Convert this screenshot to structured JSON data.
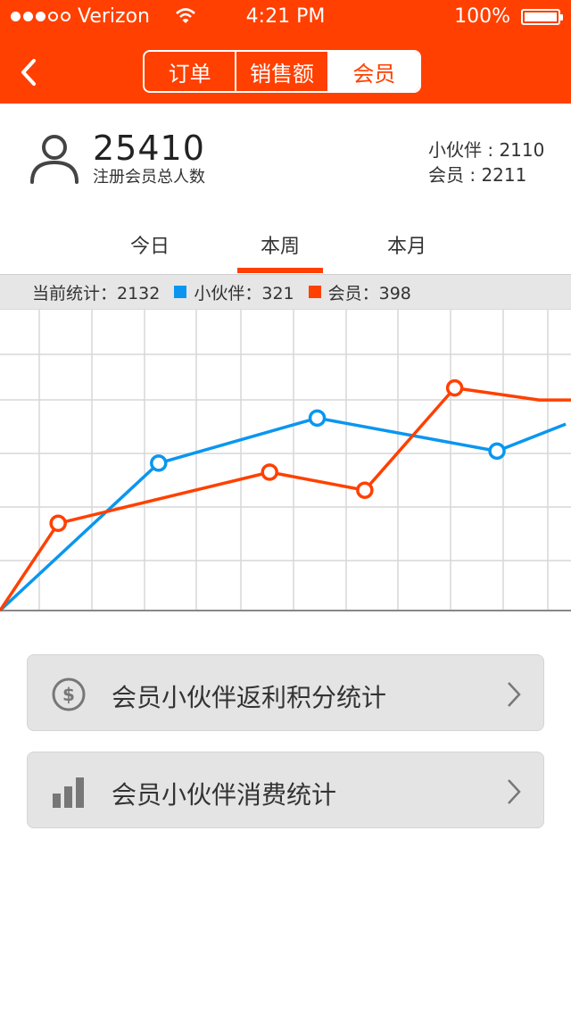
{
  "status": {
    "carrier": "Verizon",
    "time": "4:21 PM",
    "battery": "100%"
  },
  "nav": {
    "segments": [
      "订单",
      "销售额",
      "会员"
    ],
    "active": 2
  },
  "summary": {
    "total": "25410",
    "total_label": "注册会员总人数",
    "partners": "小伙伴 : 2110",
    "members": "会员 : 2211"
  },
  "periods": {
    "items": [
      "今日",
      "本周",
      "本月"
    ],
    "active": 1
  },
  "stats": {
    "current": "当前统计：2132",
    "partner": "小伙伴：321",
    "member": "会员：398",
    "partner_color": "#0a96f0",
    "member_color": "#ff4000"
  },
  "chart_data": {
    "type": "line",
    "title": "",
    "xlabel": "",
    "ylabel": "",
    "grid": true,
    "ylim": [
      0,
      100
    ],
    "series": [
      {
        "name": "小伙伴",
        "color": "#0a96f0",
        "points": [
          [
            0,
            0
          ],
          [
            30,
            49
          ],
          [
            60,
            64
          ],
          [
            94,
            53
          ],
          [
            107,
            62
          ]
        ],
        "markers": [
          1,
          2,
          3
        ]
      },
      {
        "name": "会员",
        "color": "#ff4000",
        "points": [
          [
            0,
            0
          ],
          [
            11,
            29
          ],
          [
            51,
            46
          ],
          [
            69,
            40
          ],
          [
            86,
            74
          ],
          [
            102,
            70
          ],
          [
            108,
            70
          ]
        ],
        "markers": [
          1,
          2,
          3,
          4
        ]
      }
    ]
  },
  "actions": [
    {
      "label": "会员小伙伴返利积分统计",
      "icon": "dollar-circle-icon"
    },
    {
      "label": "会员小伙伴消费统计",
      "icon": "bar-chart-icon"
    }
  ]
}
